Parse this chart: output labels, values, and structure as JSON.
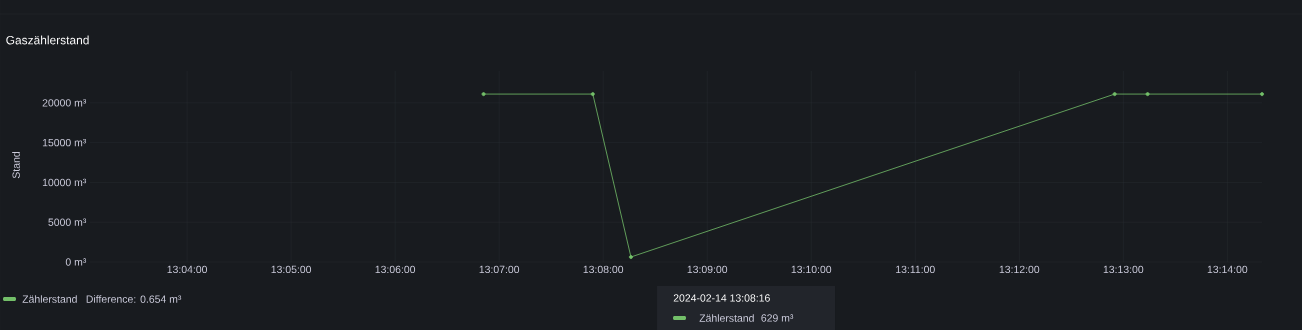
{
  "chart_data": {
    "type": "line",
    "title": "Gaszählerstand",
    "ylabel": "Stand",
    "x": [
      13.114167,
      13.131667,
      13.137778,
      13.215278,
      13.220556,
      13.238889
    ],
    "series": [
      {
        "name": "Zählerstand",
        "color": "#73bf69",
        "values": [
          21100,
          21100,
          629,
          21100,
          21100,
          21100
        ]
      }
    ],
    "xlim": [
      13.051111,
      13.238889
    ],
    "xticks": [
      {
        "value": 13.0666667,
        "label": "13:04:00"
      },
      {
        "value": 13.0833333,
        "label": "13:05:00"
      },
      {
        "value": 13.1,
        "label": "13:06:00"
      },
      {
        "value": 13.1166667,
        "label": "13:07:00"
      },
      {
        "value": 13.1333333,
        "label": "13:08:00"
      },
      {
        "value": 13.15,
        "label": "13:09:00"
      },
      {
        "value": 13.1666667,
        "label": "13:10:00"
      },
      {
        "value": 13.1833333,
        "label": "13:11:00"
      },
      {
        "value": 13.2,
        "label": "13:12:00"
      },
      {
        "value": 13.2166667,
        "label": "13:13:00"
      },
      {
        "value": 13.2333333,
        "label": "13:14:00"
      }
    ],
    "ylim": [
      0,
      24000
    ],
    "yticks": [
      {
        "value": 0,
        "label": "0 m³"
      },
      {
        "value": 5000,
        "label": "5000 m³"
      },
      {
        "value": 10000,
        "label": "10000 m³"
      },
      {
        "value": 15000,
        "label": "15000 m³"
      },
      {
        "value": 20000,
        "label": "20000 m³"
      }
    ],
    "annotations": [
      "Difference: 0.654 m³",
      "2024-02-14 13:08:16",
      "629 m³"
    ],
    "grid": true,
    "legend": "bottom left",
    "marker": "circle",
    "line_style": "solid"
  }
}
